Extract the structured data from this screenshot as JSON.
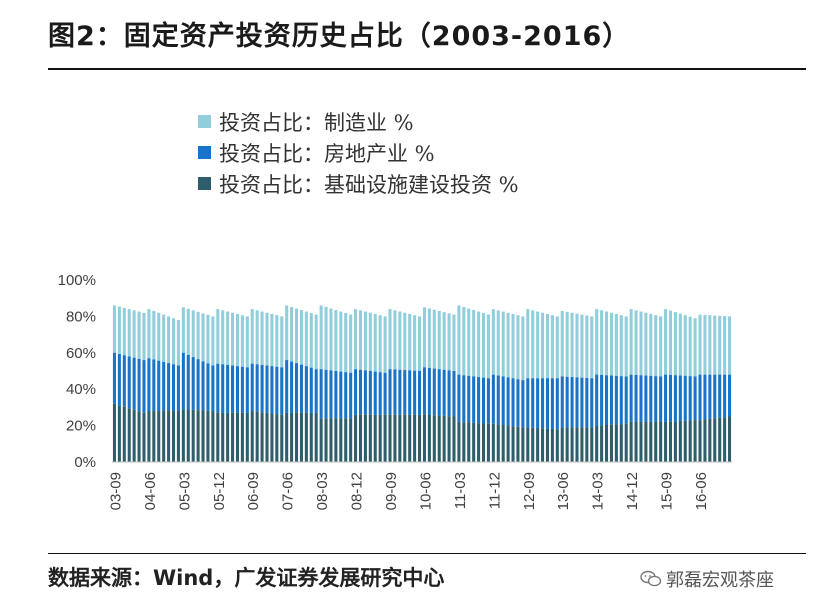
{
  "title": "图2：固定资产投资历史占比（2003-2016）",
  "footer": "数据来源：Wind，广发证券发展研究中心",
  "watermark": "郭磊宏观茶座",
  "chart_data": {
    "type": "bar",
    "stacked": true,
    "title": "图2：固定资产投资历史占比（2003-2016）",
    "xlabel": "",
    "ylabel": "",
    "ylim": [
      0,
      100
    ],
    "y_ticks": [
      "0%",
      "20%",
      "40%",
      "60%",
      "80%",
      "100%"
    ],
    "x_tick_labels": [
      "03-09",
      "04-06",
      "05-03",
      "05-12",
      "06-09",
      "07-06",
      "08-03",
      "08-12",
      "09-09",
      "10-06",
      "11-03",
      "11-12",
      "12-09",
      "13-06",
      "14-03",
      "14-12",
      "15-09",
      "16-06"
    ],
    "legend_position": "top-left",
    "grid": false,
    "colors": {
      "manufacturing": "#92CDDC",
      "real_estate": "#1874C8",
      "infrastructure": "#2E5E6B"
    },
    "series": [
      {
        "name": "投资占比：基础设施建设投资 %",
        "color": "#2E5E6B",
        "segments": [
          [
            32,
            27
          ],
          [
            28,
            28
          ],
          [
            29,
            28
          ],
          [
            27,
            27
          ],
          [
            28,
            26
          ],
          [
            27,
            27
          ],
          [
            24,
            24
          ],
          [
            26,
            26
          ],
          [
            26,
            26
          ],
          [
            26,
            25
          ],
          [
            22,
            21
          ],
          [
            21,
            19
          ],
          [
            19,
            18
          ],
          [
            19,
            19
          ],
          [
            20,
            21
          ],
          [
            22,
            22
          ],
          [
            22,
            23
          ],
          [
            23,
            25
          ]
        ]
      },
      {
        "name": "投资占比：房地产业 %",
        "color": "#1874C8",
        "segments": [
          [
            60,
            56
          ],
          [
            57,
            53
          ],
          [
            60,
            53
          ],
          [
            54,
            52
          ],
          [
            54,
            52
          ],
          [
            56,
            51
          ],
          [
            51,
            49
          ],
          [
            51,
            49
          ],
          [
            51,
            50
          ],
          [
            52,
            50
          ],
          [
            48,
            46
          ],
          [
            48,
            45
          ],
          [
            46,
            46
          ],
          [
            47,
            46
          ],
          [
            48,
            47
          ],
          [
            48,
            47
          ],
          [
            48,
            47
          ],
          [
            48,
            48
          ]
        ]
      },
      {
        "name": "投资占比：制造业 %",
        "color": "#92CDDC",
        "segments": [
          [
            86,
            82
          ],
          [
            84,
            78
          ],
          [
            85,
            80
          ],
          [
            84,
            80
          ],
          [
            84,
            80
          ],
          [
            86,
            81
          ],
          [
            86,
            81
          ],
          [
            84,
            80
          ],
          [
            84,
            80
          ],
          [
            85,
            81
          ],
          [
            86,
            81
          ],
          [
            84,
            80
          ],
          [
            84,
            80
          ],
          [
            83,
            80
          ],
          [
            84,
            80
          ],
          [
            84,
            80
          ],
          [
            84,
            79
          ],
          [
            81,
            80
          ]
        ]
      }
    ],
    "period_notes": "Each x tick label marks one of 18 periods; segments give [start, end] cumulative share (%) across monthly bars within that period."
  }
}
